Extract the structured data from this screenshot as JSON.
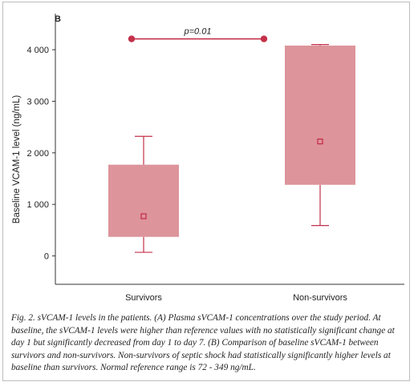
{
  "panel_label": "B",
  "caption": "Fig. 2. sVCAM-1 levels in the patients. (A) Plasma sVCAM-1 concentrations over the study period. At baseline, the sVCAM-1 levels were higher than reference values with no statistically significant change at day 1 but significantly decreased from day 1 to day 7. (B) Comparison of baseline sVCAM-1 between survivors and non-survivors. Non-survivors of septic shock had statistically significantly higher levels at baseline than survivors. Normal reference range is 72 - 349 ng/mL.",
  "colors": {
    "box_fill": "#dd949b",
    "accent": "#c4304a",
    "mean_marker": "#c01f3c",
    "axis": "#333333"
  },
  "chart_data": {
    "type": "box",
    "ylabel": "Baseline VCAM-1 level (ng/mL)",
    "ylim": [
      -550,
      4700
    ],
    "yticks": [
      0,
      1000,
      2000,
      3000,
      4000
    ],
    "ytick_labels": [
      "0",
      "1 000",
      "2 000",
      "3 000",
      "4 000"
    ],
    "categories": [
      "Survivors",
      "Non-survivors"
    ],
    "boxes": [
      {
        "category": "Survivors",
        "whisker_low": 70,
        "q1": 370,
        "q3": 1770,
        "whisker_high": 2320,
        "mean": 770
      },
      {
        "category": "Non-survivors",
        "whisker_low": 590,
        "q1": 1380,
        "q3": 4080,
        "whisker_high": 4100,
        "mean": 2220
      }
    ],
    "significance": {
      "label": "p=0.01",
      "y": 4210
    }
  }
}
